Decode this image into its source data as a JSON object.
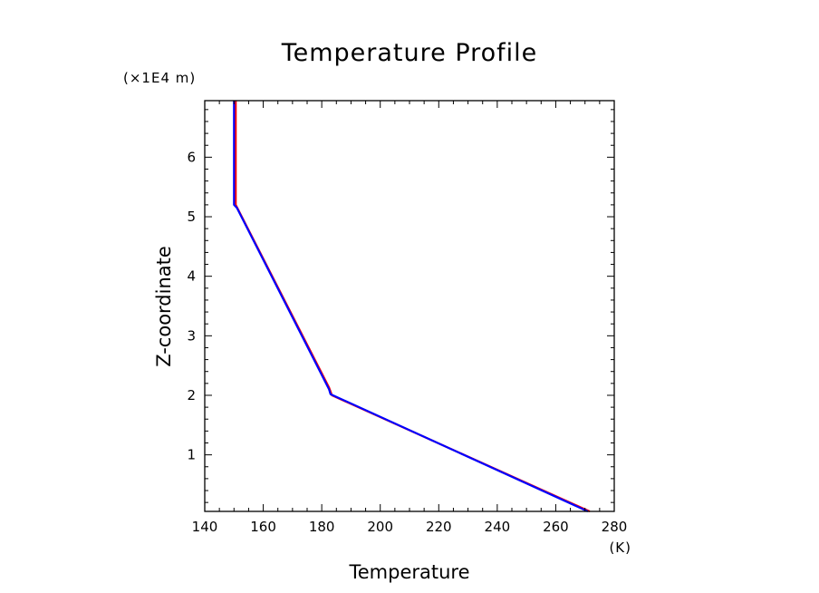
{
  "chart_data": {
    "type": "line",
    "title": "Temperature Profile",
    "xlabel": "Temperature",
    "ylabel": "Z-coordinate",
    "x_unit": "(K)",
    "y_unit": "(×1E4 m)",
    "xlim": [
      140,
      280
    ],
    "ylim": [
      0.05,
      6.95
    ],
    "x_ticks": [
      140,
      160,
      180,
      200,
      220,
      240,
      260,
      280
    ],
    "y_ticks": [
      1,
      2,
      3,
      4,
      5,
      6
    ],
    "grid": false,
    "series": [
      {
        "color": "#ff0000",
        "x": [
          271.6,
          183.5,
          182.5,
          150.6,
          150.6,
          150.6
        ],
        "y": [
          0.05,
          2.0,
          2.13,
          5.2,
          5.85,
          6.95
        ]
      },
      {
        "color": "#0000ff",
        "x": [
          271.0,
          183.0,
          182.5,
          151.0,
          150.0,
          150.0
        ],
        "y": [
          0.05,
          2.02,
          2.1,
          5.15,
          5.2,
          6.95
        ]
      }
    ]
  }
}
